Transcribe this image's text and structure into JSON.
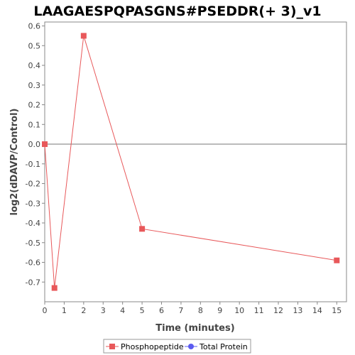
{
  "chart_data": {
    "type": "line",
    "title": "LAAGAESPQPASGNS#PSEDDR(+ 3)_v1",
    "xlabel": "Time (minutes)",
    "ylabel": "log2(dDAVP/Control)",
    "xlim": [
      0,
      15.5
    ],
    "ylim": [
      -0.8,
      0.62
    ],
    "x_ticks": [
      0,
      1,
      2,
      3,
      4,
      5,
      6,
      7,
      8,
      9,
      10,
      11,
      12,
      13,
      14,
      15
    ],
    "y_ticks": [
      0.6,
      0.5,
      0.4,
      0.3,
      0.2,
      0.1,
      0.0,
      -0.1,
      -0.2,
      -0.3,
      -0.4,
      -0.5,
      -0.6,
      -0.7
    ],
    "y_tick_labels": [
      "0.6",
      "0.5",
      "0.4",
      "0.3",
      "0.2",
      "0.1",
      "0.0",
      "-0.1",
      "-0.2",
      "-0.3",
      "-0.4",
      "-0.5",
      "-0.6",
      "-0.7"
    ],
    "zero_line": true,
    "grid": false,
    "legend_position": "bottom",
    "series": [
      {
        "name": "Phosphopeptide",
        "color": "#e8585a",
        "marker": "square",
        "x": [
          0,
          0.5,
          2,
          5,
          15
        ],
        "y": [
          0.0,
          -0.73,
          0.55,
          -0.43,
          -0.59
        ]
      },
      {
        "name": "Total Protein",
        "color": "#5b5bf0",
        "marker": "circle",
        "x": [],
        "y": []
      }
    ]
  }
}
